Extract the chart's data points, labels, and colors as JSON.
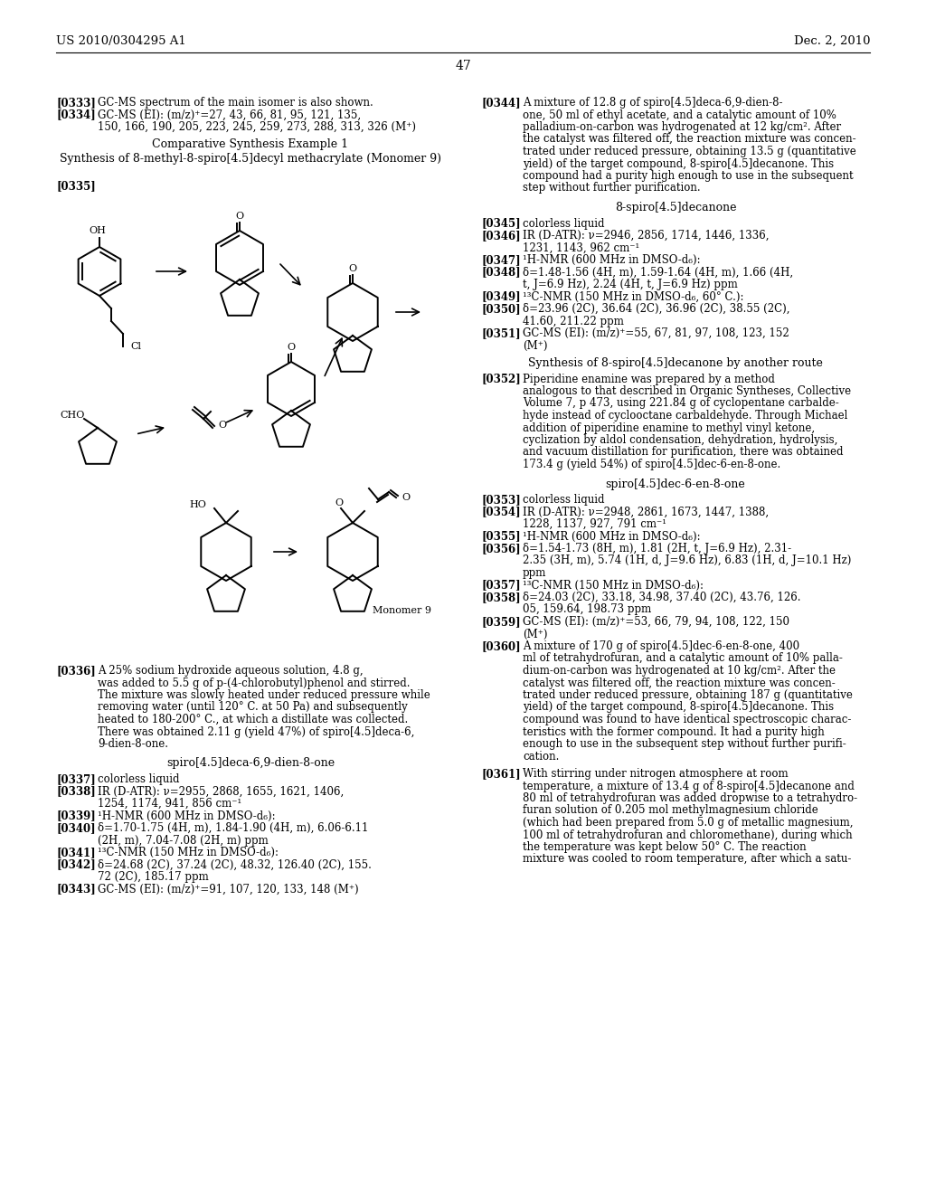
{
  "page_number": "47",
  "header_left": "US 2010/0304295 A1",
  "header_right": "Dec. 2, 2010",
  "background_color": "#ffffff"
}
